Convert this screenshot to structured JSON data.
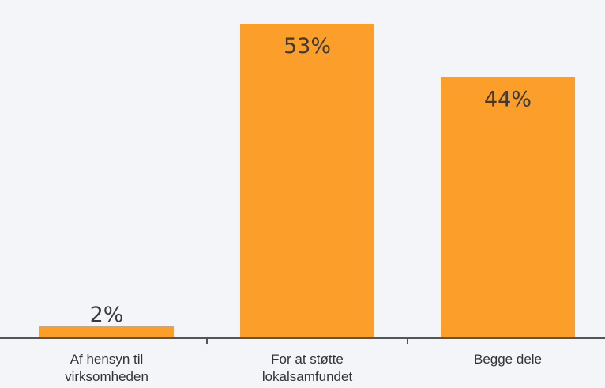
{
  "chart_data": {
    "type": "bar",
    "categories": [
      [
        "Af hensyn til",
        "virksomheden"
      ],
      [
        "For at støtte",
        "lokalsamfundet"
      ],
      [
        "Begge dele"
      ]
    ],
    "values": [
      2,
      53,
      44
    ],
    "value_labels": [
      "2%",
      "53%",
      "44%"
    ],
    "ylim": [
      0,
      55
    ],
    "grid": false,
    "title": "",
    "xlabel": "",
    "ylabel": ""
  },
  "colors": {
    "bar": "#fc9f2a",
    "axis": "#555555",
    "background": "#f4f5f8"
  }
}
